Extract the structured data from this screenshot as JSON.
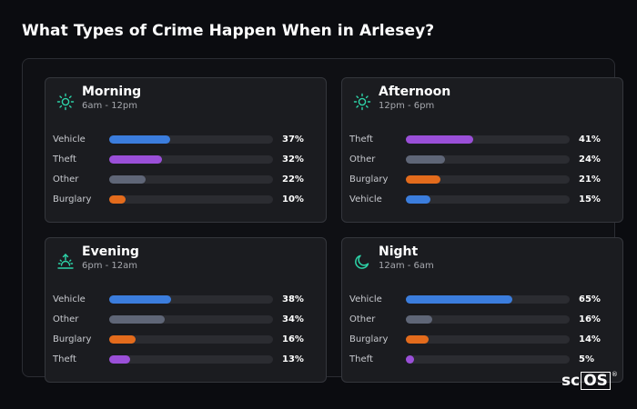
{
  "title": "What Types of Crime Happen When in Arlesey?",
  "colors": {
    "background": "#0b0c10",
    "card": "#1b1c20",
    "accent_icon": "#2dd4a8",
    "Vehicle": "#3b7ddd",
    "Theft": "#9a4fd8",
    "Other": "#5f6677",
    "Burglary": "#e36b1c",
    "track": "#2b2c31"
  },
  "cards": [
    {
      "name": "Morning",
      "range": "6am - 12pm",
      "icon": "sun-icon",
      "rows": [
        {
          "label": "Vehicle",
          "value": 37,
          "pct": "37%"
        },
        {
          "label": "Theft",
          "value": 32,
          "pct": "32%"
        },
        {
          "label": "Other",
          "value": 22,
          "pct": "22%"
        },
        {
          "label": "Burglary",
          "value": 10,
          "pct": "10%"
        }
      ]
    },
    {
      "name": "Afternoon",
      "range": "12pm - 6pm",
      "icon": "sun-icon",
      "rows": [
        {
          "label": "Theft",
          "value": 41,
          "pct": "41%"
        },
        {
          "label": "Other",
          "value": 24,
          "pct": "24%"
        },
        {
          "label": "Burglary",
          "value": 21,
          "pct": "21%"
        },
        {
          "label": "Vehicle",
          "value": 15,
          "pct": "15%"
        }
      ]
    },
    {
      "name": "Evening",
      "range": "6pm - 12am",
      "icon": "sunset-icon",
      "rows": [
        {
          "label": "Vehicle",
          "value": 38,
          "pct": "38%"
        },
        {
          "label": "Other",
          "value": 34,
          "pct": "34%"
        },
        {
          "label": "Burglary",
          "value": 16,
          "pct": "16%"
        },
        {
          "label": "Theft",
          "value": 13,
          "pct": "13%"
        }
      ]
    },
    {
      "name": "Night",
      "range": "12am - 6am",
      "icon": "moon-icon",
      "rows": [
        {
          "label": "Vehicle",
          "value": 65,
          "pct": "65%"
        },
        {
          "label": "Other",
          "value": 16,
          "pct": "16%"
        },
        {
          "label": "Burglary",
          "value": 14,
          "pct": "14%"
        },
        {
          "label": "Theft",
          "value": 5,
          "pct": "5%"
        }
      ]
    }
  ],
  "logo": {
    "left": "sc",
    "box": "OS",
    "mark": "®"
  }
}
